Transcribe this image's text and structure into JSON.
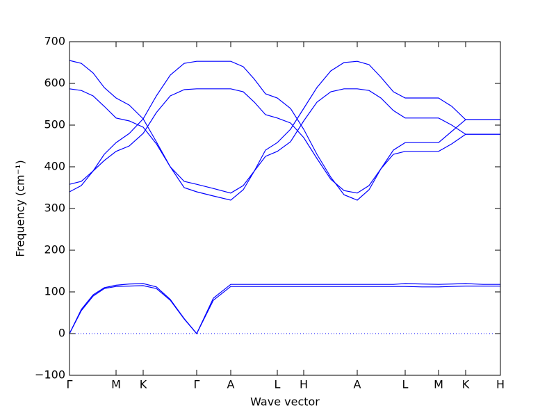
{
  "chart_data": {
    "type": "line",
    "xlabel": "Wave vector",
    "ylabel": "Frequency (cm⁻¹)",
    "xlim": [
      0,
      6.2
    ],
    "xticks": [
      {
        "value": 0,
        "label": "Γ"
      },
      {
        "value": 0.67,
        "label": "M"
      },
      {
        "value": 1.06,
        "label": "K"
      },
      {
        "value": 1.83,
        "label": "Γ"
      },
      {
        "value": 2.32,
        "label": "A"
      },
      {
        "value": 2.99,
        "label": "L"
      },
      {
        "value": 3.37,
        "label": "H"
      },
      {
        "value": 4.14,
        "label": "A"
      },
      {
        "value": 4.83,
        "label": "L"
      },
      {
        "value": 5.31,
        "label": "M"
      },
      {
        "value": 5.7,
        "label": "K"
      },
      {
        "value": 6.2,
        "label": "H"
      }
    ],
    "ylim": [
      -100,
      700
    ],
    "yticks": [
      {
        "value": -100,
        "label": "−100"
      },
      0,
      100,
      200,
      300,
      400,
      500,
      600,
      700
    ],
    "zero_line": true,
    "x": [
      0,
      0.17,
      0.34,
      0.5,
      0.67,
      0.86,
      1.06,
      1.25,
      1.45,
      1.65,
      1.83,
      2.07,
      2.32,
      2.5,
      2.66,
      2.82,
      2.99,
      3.18,
      3.37,
      3.56,
      3.76,
      3.95,
      4.14,
      4.31,
      4.48,
      4.66,
      4.83,
      5.07,
      5.31,
      5.5,
      5.7,
      5.95,
      6.2
    ],
    "series": [
      {
        "color": "#0000ff",
        "values": [
          655,
          648,
          625,
          590,
          565,
          548,
          515,
          460,
          400,
          350,
          340,
          330,
          320,
          345,
          390,
          440,
          458,
          490,
          540,
          590,
          630,
          650,
          653,
          645,
          615,
          580,
          565,
          565,
          565,
          545,
          513,
          513,
          513
        ]
      },
      {
        "color": "#0000ff",
        "values": [
          587,
          583,
          570,
          545,
          517,
          510,
          495,
          455,
          400,
          365,
          358,
          348,
          337,
          355,
          390,
          425,
          437,
          460,
          510,
          555,
          580,
          587,
          587,
          583,
          565,
          535,
          517,
          517,
          517,
          500,
          478,
          478,
          478
        ]
      },
      {
        "color": "#0000ff",
        "values": [
          340,
          355,
          390,
          430,
          458,
          480,
          515,
          570,
          620,
          648,
          653,
          653,
          653,
          640,
          610,
          575,
          565,
          540,
          490,
          430,
          375,
          333,
          320,
          345,
          395,
          440,
          458,
          458,
          458,
          485,
          513,
          513,
          513
        ]
      },
      {
        "color": "#0000ff",
        "values": [
          358,
          365,
          390,
          415,
          437,
          450,
          480,
          530,
          570,
          585,
          587,
          587,
          587,
          580,
          555,
          525,
          517,
          505,
          470,
          420,
          370,
          343,
          337,
          355,
          395,
          430,
          437,
          437,
          437,
          455,
          478,
          478,
          478
        ]
      },
      {
        "color": "#0000ff",
        "values": [
          0,
          55,
          90,
          108,
          113,
          114,
          115,
          108,
          80,
          35,
          0,
          80,
          113,
          113,
          113,
          113,
          113,
          113,
          113,
          113,
          113,
          113,
          113,
          113,
          113,
          113,
          113,
          112,
          112,
          113,
          114,
          114,
          114
        ]
      },
      {
        "color": "#0000ff",
        "values": [
          0,
          58,
          93,
          110,
          116,
          119,
          120,
          112,
          82,
          36,
          0,
          85,
          118,
          118,
          118,
          118,
          118,
          118,
          118,
          118,
          118,
          118,
          118,
          118,
          118,
          118,
          120,
          119,
          118,
          119,
          120,
          118,
          118
        ]
      }
    ]
  }
}
